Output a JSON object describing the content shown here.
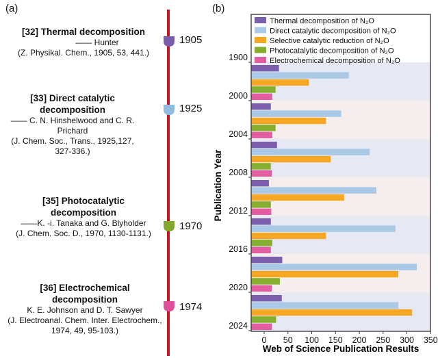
{
  "panel_a_label": "(a)",
  "panel_b_label": "(b)",
  "timeline": {
    "line_color": "#c8141e",
    "events": [
      {
        "title": "[32] Thermal decomposition",
        "author": "—— Hunter",
        "citation": "(Z. Physikal. Chem., 1905, 53, 441.)",
        "year": "1905",
        "color": "#7a5cad"
      },
      {
        "title": "[33] Direct catalytic decomposition",
        "author": "—— C. N. Hinshelwood and C. R. Prichard",
        "citation": "(J. Chem. Soc., Trans., 1925,127, 327-336.)",
        "year": "1925",
        "color": "#8fbde0"
      },
      {
        "title": "[35] Photocatalytic decomposition",
        "author": "——K. -i. Tanaka and G. Blyholder",
        "citation": "(J. Chem. Soc. D., 1970, 1130-1131.)",
        "year": "1970",
        "color": "#82a82a"
      },
      {
        "title": "[36]  Electrochemical decomposition",
        "author": "K. E. Johnson and D. T. Sawyer",
        "citation": "(J. Electroanal. Chem. Inter. Electrochem., 1974, 49, 95-103.)",
        "year": "1974",
        "color": "#e0509b"
      }
    ]
  },
  "chart_data": {
    "type": "bar",
    "orientation": "horizontal",
    "xlabel": "Web of Science Publication Results",
    "ylabel": "Publication Year",
    "xlim": [
      -20,
      350
    ],
    "xticks": [
      "0",
      "50",
      "100",
      "150",
      "200",
      "250",
      "300",
      "350"
    ],
    "year_ticks": [
      "1900",
      "2000",
      "2004",
      "2008",
      "2012",
      "2016",
      "2020",
      "2024"
    ],
    "groups": [
      "1900-2000",
      "2000-2004",
      "2004-2008",
      "2008-2012",
      "2012-2016",
      "2016-2020",
      "2020-2024"
    ],
    "series": [
      {
        "name": "Thermal decomposition of N₂O",
        "color": "#7b5fae",
        "values": [
          31,
          14,
          27,
          10,
          14,
          38,
          37
        ]
      },
      {
        "name": "Direct catalytic decomposition of N₂O",
        "color": "#a9c9e6",
        "values": [
          178,
          162,
          222,
          236,
          276,
          321,
          282
        ]
      },
      {
        "name": "Selective catalytic reduction of N₂O",
        "color": "#f5a623",
        "values": [
          94,
          130,
          140,
          168,
          130,
          282,
          311
        ]
      },
      {
        "name": "Photocatalytic decomposition of N₂O",
        "color": "#85ad2e",
        "values": [
          24,
          24,
          14,
          14,
          17,
          33,
          25
        ]
      },
      {
        "name": "Electrochemical decomposition of N₂O",
        "color": "#e35da3",
        "values": [
          17,
          17,
          16,
          15,
          14,
          16,
          16
        ]
      }
    ],
    "band_colors": [
      "#e6e9f4",
      "#f6eeec"
    ]
  }
}
